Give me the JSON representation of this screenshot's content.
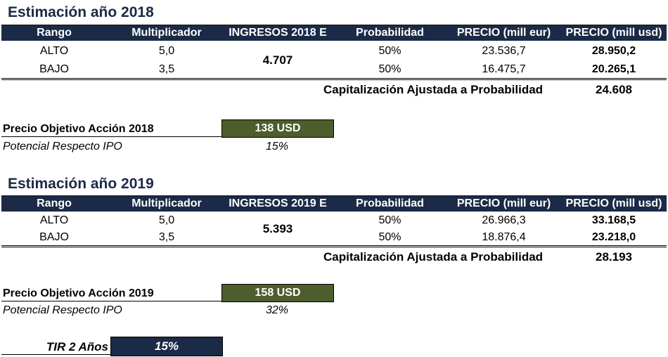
{
  "colors": {
    "header_bg": "#1b2a46",
    "target_box": "#4e5d2c",
    "tir_box": "#1b2a46"
  },
  "columns": [
    "Rango",
    "Multiplicador",
    "INGRESOS 2018 E",
    "Probabilidad",
    "PRECIO (mill eur)",
    "PRECIO (mill usd)"
  ],
  "section2018": {
    "title": "Estimación año 2018",
    "ingresos_header": "INGRESOS 2018 E",
    "ingresos_value": "4.707",
    "rows": [
      {
        "rango": "ALTO",
        "mult": "5,0",
        "prob": "50%",
        "eur": "23.536,7",
        "usd": "28.950,2"
      },
      {
        "rango": "BAJO",
        "mult": "3,5",
        "prob": "50%",
        "eur": "16.475,7",
        "usd": "20.265,1"
      }
    ],
    "cap_label": "Capitalización Ajustada a Probabilidad",
    "cap_value": "24.608",
    "target_label": "Precio Objetivo Acción 2018",
    "target_value": "138 USD",
    "potential_label": "Potencial Respecto IPO",
    "potential_value": "15%"
  },
  "section2019": {
    "title": "Estimación año 2019",
    "ingresos_header": "INGRESOS 2019 E",
    "ingresos_value": "5.393",
    "rows": [
      {
        "rango": "ALTO",
        "mult": "5,0",
        "prob": "50%",
        "eur": "26.966,3",
        "usd": "33.168,5"
      },
      {
        "rango": "BAJO",
        "mult": "3,5",
        "prob": "50%",
        "eur": "18.876,4",
        "usd": "23.218,0"
      }
    ],
    "cap_label": "Capitalización Ajustada a Probabilidad",
    "cap_value": "28.193",
    "target_label": "Precio Objetivo Acción 2019",
    "target_value": "158 USD",
    "potential_label": "Potencial Respecto IPO",
    "potential_value": "32%"
  },
  "tir": {
    "label": "TIR 2 Años",
    "value": "15%"
  }
}
